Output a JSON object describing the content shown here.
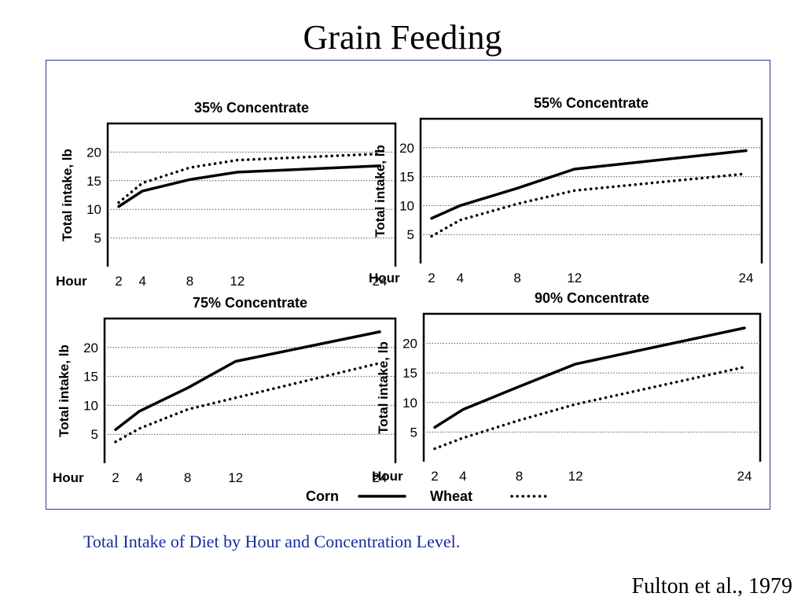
{
  "slide": {
    "title": "Grain Feeding",
    "caption": "Total Intake of Diet by Hour and Concentration Level.",
    "source": "Fulton et al., 1979"
  },
  "legend": {
    "items": [
      {
        "label": "Corn",
        "style": "solid"
      },
      {
        "label": "Wheat",
        "style": "dotted"
      }
    ]
  },
  "colors": {
    "caption": "#1a2aa0",
    "frame": "#2a3a9a",
    "lines": "#000000"
  },
  "chart_data": [
    {
      "type": "line",
      "title": "35% Concentrate",
      "ylabel": "Total intake, lb",
      "xlabel": "Hour",
      "x_ticks": [
        2,
        4,
        8,
        12,
        24
      ],
      "y_ticks": [
        5,
        10,
        15,
        20
      ],
      "ylim": [
        0,
        25
      ],
      "grid": true,
      "series": [
        {
          "name": "Corn",
          "style": "solid",
          "x": [
            2,
            4,
            8,
            12,
            24
          ],
          "y": [
            10.5,
            13.2,
            15.2,
            16.5,
            17.6
          ]
        },
        {
          "name": "Wheat",
          "style": "dotted",
          "x": [
            2,
            4,
            8,
            12,
            24
          ],
          "y": [
            11.2,
            14.6,
            17.3,
            18.6,
            19.7
          ]
        }
      ]
    },
    {
      "type": "line",
      "title": "55% Concentrate",
      "ylabel": "Total intake, lb",
      "xlabel": "Hour",
      "x_ticks": [
        2,
        4,
        8,
        12,
        24
      ],
      "y_ticks": [
        5,
        10,
        15,
        20
      ],
      "ylim": [
        0,
        25
      ],
      "grid": true,
      "series": [
        {
          "name": "Corn",
          "style": "solid",
          "x": [
            2,
            4,
            8,
            12,
            24
          ],
          "y": [
            7.8,
            10,
            13,
            16.3,
            19.5
          ]
        },
        {
          "name": "Wheat",
          "style": "dotted",
          "x": [
            2,
            4,
            8,
            12,
            24
          ],
          "y": [
            4.7,
            7.5,
            10.3,
            12.6,
            15.5
          ]
        }
      ]
    },
    {
      "type": "line",
      "title": "75% Concentrate",
      "ylabel": "Total intake, lb",
      "xlabel": "Hour",
      "x_ticks": [
        2,
        4,
        8,
        12,
        24
      ],
      "y_ticks": [
        5,
        10,
        15,
        20
      ],
      "ylim": [
        0,
        25
      ],
      "grid": true,
      "series": [
        {
          "name": "Corn",
          "style": "solid",
          "x": [
            2,
            4,
            8,
            12,
            24
          ],
          "y": [
            5.8,
            9,
            13,
            17.6,
            22.7
          ]
        },
        {
          "name": "Wheat",
          "style": "dotted",
          "x": [
            2,
            4,
            8,
            12,
            24
          ],
          "y": [
            3.7,
            6,
            9.3,
            11.3,
            17.3
          ]
        }
      ]
    },
    {
      "type": "line",
      "title": "90% Concentrate",
      "ylabel": "Total intake, lb",
      "xlabel": "Hour",
      "x_ticks": [
        2,
        4,
        8,
        12,
        24
      ],
      "y_ticks": [
        5,
        10,
        15,
        20
      ],
      "ylim": [
        0,
        25
      ],
      "grid": true,
      "series": [
        {
          "name": "Corn",
          "style": "solid",
          "x": [
            2,
            4,
            8,
            12,
            24
          ],
          "y": [
            5.8,
            8.8,
            12.7,
            16.5,
            22.6
          ]
        },
        {
          "name": "Wheat",
          "style": "dotted",
          "x": [
            2,
            4,
            8,
            12,
            24
          ],
          "y": [
            2.2,
            4,
            7,
            9.7,
            16
          ]
        }
      ]
    }
  ]
}
